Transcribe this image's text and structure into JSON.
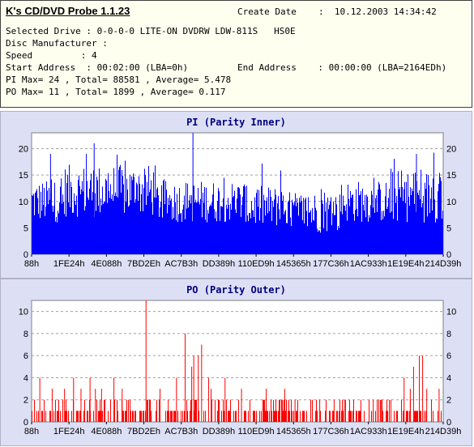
{
  "app": {
    "title": "K's CD/DVD Probe 1.1.23",
    "create_date_label": "Create Date",
    "create_date_value": ":  10.12.2003 14:34:42"
  },
  "info": {
    "drive": "Selected Drive : 0-0-0-0 LITE-ON DVDRW LDW-811S   HS0E",
    "manufacturer": "Disc Manufacturer :",
    "speed": "Speed         : 4",
    "start": "Start Address  : 00:02:00 (LBA=0h)",
    "end": "End Address    : 00:00:00 (LBA=2164EDh)",
    "pi": "PI Max= 24 , Total= 88581 , Average= 5.478",
    "po": "PO Max= 11 , Total= 1899 , Average= 0.117"
  },
  "chart_data": [
    {
      "type": "bar",
      "title": "PI (Parity Inner)",
      "color": "#0000ff",
      "ylim": [
        0,
        23
      ],
      "yticks": [
        0,
        5,
        10,
        15,
        20
      ],
      "grid": true,
      "xticks": [
        "88h",
        "1FE24h",
        "4E088h",
        "7BD2Eh",
        "AC7B3h",
        "DD389h",
        "110ED9h",
        "145365h",
        "177C36h",
        "1AC933h",
        "1E19E4h",
        "214D39h"
      ],
      "segments": [
        {
          "x0": 0.0,
          "x1": 0.08,
          "base": 10,
          "noise": 4
        },
        {
          "x0": 0.08,
          "x1": 0.17,
          "base": 12,
          "noise": 5
        },
        {
          "x0": 0.17,
          "x1": 0.3,
          "base": 12,
          "noise": 5
        },
        {
          "x0": 0.3,
          "x1": 0.4,
          "base": 10,
          "noise": 4
        },
        {
          "x0": 0.4,
          "x1": 0.52,
          "base": 10,
          "noise": 4
        },
        {
          "x0": 0.52,
          "x1": 0.62,
          "base": 9,
          "noise": 4
        },
        {
          "x0": 0.62,
          "x1": 0.75,
          "base": 8,
          "noise": 4
        },
        {
          "x0": 0.75,
          "x1": 0.87,
          "base": 10,
          "noise": 4
        },
        {
          "x0": 0.87,
          "x1": 1.0,
          "base": 11,
          "noise": 5
        }
      ],
      "peaks": [
        {
          "x": 0.392,
          "value": 23
        },
        {
          "x": 0.152,
          "value": 21
        },
        {
          "x": 0.133,
          "value": 19
        },
        {
          "x": 0.046,
          "value": 19
        },
        {
          "x": 0.881,
          "value": 17
        },
        {
          "x": 0.935,
          "value": 19
        },
        {
          "x": 0.946,
          "value": 16
        }
      ]
    },
    {
      "type": "bar",
      "title": "PO (Parity Outer)",
      "color": "#ff0000",
      "ylim": [
        0,
        11
      ],
      "yticks": [
        0,
        2,
        4,
        6,
        8,
        10
      ],
      "grid": true,
      "xticks": [
        "88h",
        "1FE24h",
        "4E088h",
        "7BD2Eh",
        "AC7B3h",
        "DD389h",
        "110ED9h",
        "145365h",
        "177C36h",
        "1AC933h",
        "1E19E4h",
        "214D39h"
      ],
      "bars": [
        {
          "x": 0.278,
          "value": 11
        },
        {
          "x": 0.373,
          "value": 8
        },
        {
          "x": 0.394,
          "value": 6
        },
        {
          "x": 0.405,
          "value": 6
        },
        {
          "x": 0.389,
          "value": 5
        },
        {
          "x": 0.413,
          "value": 7
        },
        {
          "x": 0.43,
          "value": 4
        },
        {
          "x": 0.436,
          "value": 3
        },
        {
          "x": 0.352,
          "value": 4
        },
        {
          "x": 0.312,
          "value": 3
        },
        {
          "x": 0.332,
          "value": 2
        },
        {
          "x": 0.02,
          "value": 4
        },
        {
          "x": 0.05,
          "value": 3
        },
        {
          "x": 0.08,
          "value": 3
        },
        {
          "x": 0.102,
          "value": 4
        },
        {
          "x": 0.12,
          "value": 3
        },
        {
          "x": 0.142,
          "value": 4
        },
        {
          "x": 0.155,
          "value": 3
        },
        {
          "x": 0.17,
          "value": 3
        },
        {
          "x": 0.2,
          "value": 4
        },
        {
          "x": 0.22,
          "value": 3
        },
        {
          "x": 0.47,
          "value": 4
        },
        {
          "x": 0.51,
          "value": 3
        },
        {
          "x": 0.57,
          "value": 3
        },
        {
          "x": 0.615,
          "value": 3
        },
        {
          "x": 0.64,
          "value": 2
        },
        {
          "x": 0.7,
          "value": 2
        },
        {
          "x": 0.735,
          "value": 2
        },
        {
          "x": 0.76,
          "value": 2
        },
        {
          "x": 0.8,
          "value": 2
        },
        {
          "x": 0.83,
          "value": 2
        },
        {
          "x": 0.85,
          "value": 2
        },
        {
          "x": 0.905,
          "value": 4
        },
        {
          "x": 0.92,
          "value": 3
        },
        {
          "x": 0.928,
          "value": 5
        },
        {
          "x": 0.942,
          "value": 6
        },
        {
          "x": 0.95,
          "value": 6
        },
        {
          "x": 0.96,
          "value": 3
        },
        {
          "x": 0.99,
          "value": 3
        }
      ],
      "base_level": 1
    }
  ]
}
